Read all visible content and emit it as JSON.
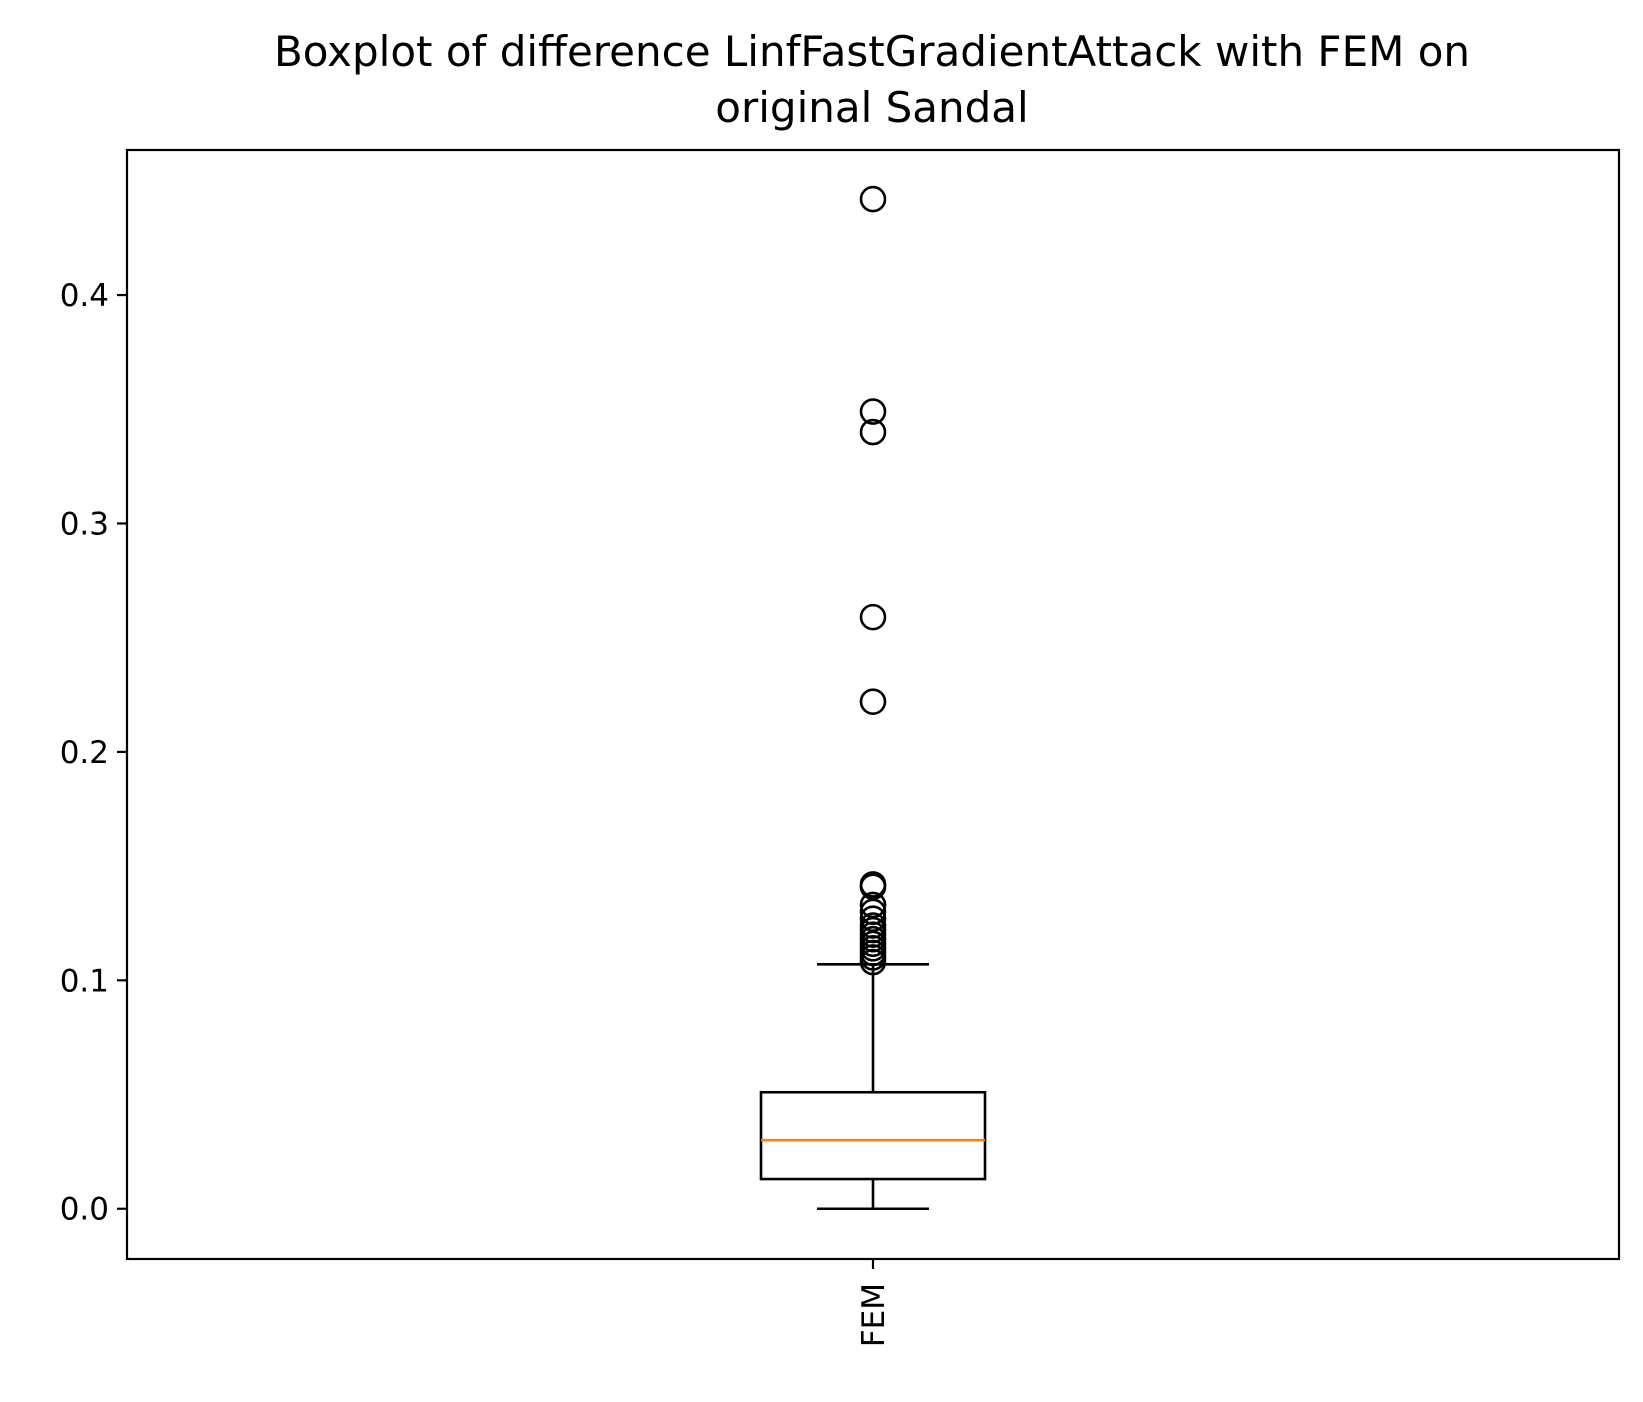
{
  "chart_data": {
    "type": "boxplot",
    "title": [
      "Boxplot of difference LinfFastGradientAttack with FEM on",
      "original Sandal"
    ],
    "xlabel": "",
    "ylabel": "",
    "categories": [
      "FEM"
    ],
    "x_tick_rotation": "vertical",
    "ylim": [
      -0.022,
      0.4635
    ],
    "y_ticks": [
      0.0,
      0.1,
      0.2,
      0.3,
      0.4
    ],
    "y_tick_labels": [
      "0.0",
      "0.1",
      "0.2",
      "0.3",
      "0.4"
    ],
    "grid": false,
    "legend": "none",
    "boxes": [
      {
        "category": "FEM",
        "whisker_low": 0.0,
        "q1": 0.013,
        "median": 0.03,
        "q3": 0.051,
        "whisker_high": 0.107,
        "outliers": [
          0.108,
          0.11,
          0.112,
          0.114,
          0.116,
          0.118,
          0.12,
          0.122,
          0.124,
          0.127,
          0.13,
          0.133,
          0.141,
          0.142,
          0.222,
          0.259,
          0.34,
          0.349,
          0.442
        ]
      }
    ],
    "colors": {
      "box": "#000000",
      "median": "#ff7f0e",
      "outlier": "#000000"
    }
  }
}
